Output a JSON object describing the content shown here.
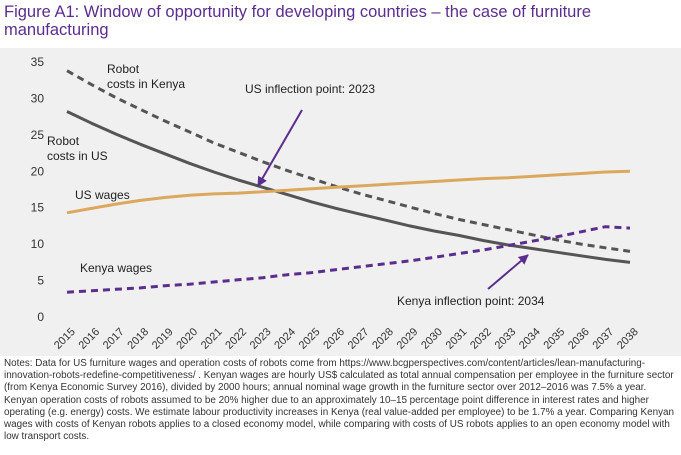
{
  "figure": {
    "title": "Figure A1: Window of opportunity for developing countries – the case of furniture manufacturing",
    "notes": "Notes: Data for US furniture wages and operation costs of robots come from https://www.bcgperspectives.com/content/articles/lean-manufacturing-innovation-robots-redefine-competitiveness/ . Kenyan wages are hourly US$ calculated as total annual compensation per employee in the furniture sector (from Kenya Economic Survey 2016), divided by 2000 hours; annual nominal wage growth in the furniture sector over 2012–2016 was 7.5% a year. Kenyan operation costs of robots assumed to be 20% higher due to an approximately 10–15 percentage point difference in interest rates and higher operating (e.g. energy) costs. We estimate labour productivity increases in Kenya (real value-added per employee) to be 1.7% a year. Comparing Kenyan wages with costs of Kenyan robots applies to a closed economy model, while comparing with costs of US robots applies to an open economy model with low transport costs."
  },
  "chart_data": {
    "type": "line",
    "title": "Window of opportunity for developing countries – the case of furniture manufacturing",
    "xlabel": "",
    "ylabel": "",
    "ylim": [
      0,
      35
    ],
    "yticks": [
      0,
      5,
      10,
      15,
      20,
      25,
      30,
      35
    ],
    "grid": false,
    "x": [
      2015,
      2016,
      2017,
      2018,
      2019,
      2020,
      2021,
      2022,
      2023,
      2024,
      2025,
      2026,
      2027,
      2028,
      2029,
      2030,
      2031,
      2032,
      2033,
      2034,
      2035,
      2036,
      2037,
      2038
    ],
    "x_labels": [
      "2015",
      "2016",
      "2017",
      "2018",
      "2019",
      "2020",
      "2021",
      "2022",
      "2023",
      "2024",
      "2025",
      "2026",
      "2027",
      "2028",
      "2029",
      "2030",
      "2031",
      "2032",
      "2033",
      "2034",
      "2035",
      "2036",
      "2037",
      "2038"
    ],
    "series": [
      {
        "name": "Robot costs in Kenya",
        "color": "#555555",
        "dash": true,
        "values": [
          33.8,
          31.9,
          30.1,
          28.5,
          26.9,
          25.4,
          23.9,
          22.6,
          21.3,
          20.1,
          19.0,
          17.9,
          16.9,
          16.0,
          15.1,
          14.2,
          13.4,
          12.7,
          12.0,
          11.3,
          10.6,
          10.0,
          9.5,
          9.0
        ]
      },
      {
        "name": "Robot costs in US",
        "color": "#555555",
        "dash": false,
        "values": [
          28.2,
          26.6,
          25.1,
          23.7,
          22.4,
          21.1,
          19.9,
          18.8,
          17.8,
          16.8,
          15.8,
          14.9,
          14.1,
          13.3,
          12.5,
          11.8,
          11.2,
          10.5,
          9.9,
          9.4,
          8.9,
          8.4,
          7.9,
          7.5
        ]
      },
      {
        "name": "US wages",
        "color": "#dba85e",
        "dash": false,
        "values": [
          14.3,
          14.9,
          15.5,
          16.0,
          16.4,
          16.7,
          16.9,
          17.0,
          17.2,
          17.4,
          17.6,
          17.8,
          18.0,
          18.2,
          18.4,
          18.6,
          18.8,
          19.0,
          19.1,
          19.3,
          19.5,
          19.7,
          19.9,
          20.0
        ]
      },
      {
        "name": "Kenya wages",
        "color": "#5b2d8e",
        "dash": true,
        "values": [
          3.4,
          3.6,
          3.8,
          4.0,
          4.3,
          4.5,
          4.8,
          5.1,
          5.4,
          5.8,
          6.1,
          6.5,
          6.9,
          7.3,
          7.7,
          8.2,
          8.7,
          9.2,
          9.8,
          10.4,
          11.0,
          11.7,
          12.4,
          12.2
        ]
      }
    ],
    "series_labels": {
      "robot_kenya": [
        "Robot",
        "costs in Kenya"
      ],
      "robot_us": [
        "Robot",
        "costs in US"
      ],
      "us_wages": "US wages",
      "kenya_wages": "Kenya wages"
    },
    "annotations": [
      {
        "text": "US inflection point: 2023",
        "target_x": 2023,
        "target_y": 17.2
      },
      {
        "text": "Kenya inflection point: 2034",
        "target_x": 2034,
        "target_y": 9.6
      }
    ]
  }
}
